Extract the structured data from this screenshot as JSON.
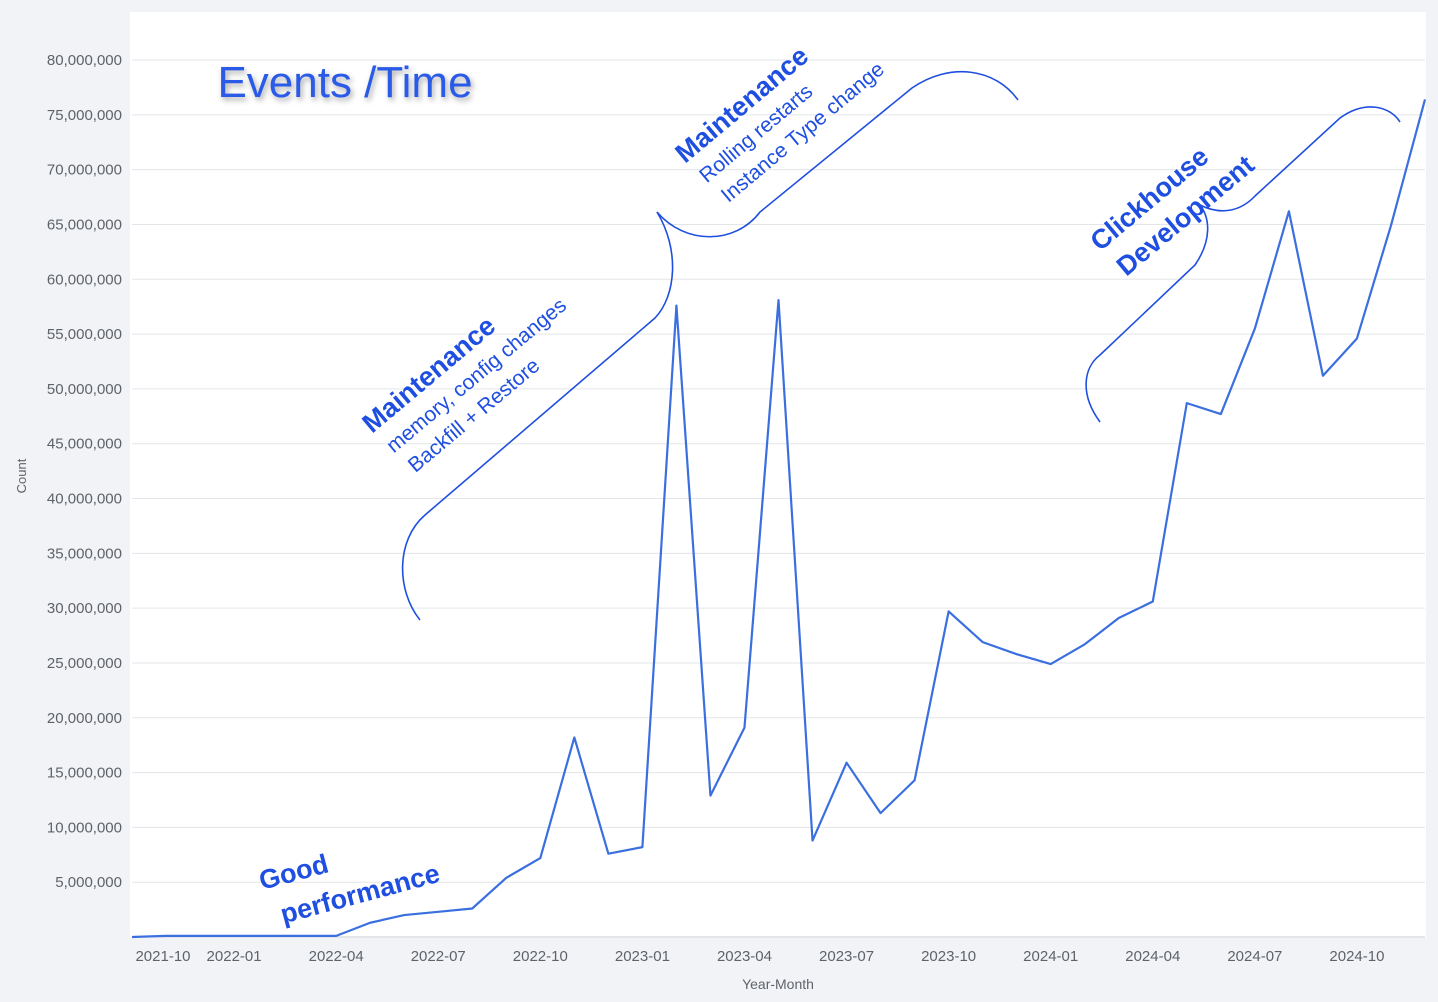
{
  "chart_data": {
    "type": "line",
    "title": "Events /Time",
    "x_label": "Year-Month",
    "y_label": "Count",
    "categories": [
      "2021-10",
      null,
      null,
      "2022-01",
      null,
      null,
      "2022-04",
      null,
      null,
      "2022-07",
      null,
      null,
      "2022-10",
      null,
      null,
      "2023-01",
      null,
      null,
      "2023-04",
      null,
      null,
      "2023-07",
      null,
      null,
      "2023-10",
      null,
      null,
      "2024-01",
      null,
      null,
      "2024-04",
      null,
      null,
      "2024-07",
      null,
      null,
      "2024-10",
      null,
      null
    ],
    "series": [
      {
        "name": "Count",
        "color": "#3b6fe0",
        "values": [
          0,
          100000,
          100000,
          100000,
          100000,
          100000,
          100000,
          1300000,
          2000000,
          2300000,
          2600000,
          5400000,
          7200000,
          18200000,
          7600000,
          8200000,
          57600000,
          12900000,
          19100000,
          58100000,
          8800000,
          15900000,
          11300000,
          14300000,
          29700000,
          26900000,
          25800000,
          24900000,
          26700000,
          29100000,
          30600000,
          48700000,
          47700000,
          55500000,
          66200000,
          51200000,
          54600000,
          64900000,
          76400000
        ]
      }
    ],
    "ylim": [
      0,
      80000000
    ],
    "yticks": [
      {
        "value": 5000000,
        "label": "5,000,000"
      },
      {
        "value": 10000000,
        "label": "10,000,000"
      },
      {
        "value": 15000000,
        "label": "15,000,000"
      },
      {
        "value": 20000000,
        "label": "20,000,000"
      },
      {
        "value": 25000000,
        "label": "25,000,000"
      },
      {
        "value": 30000000,
        "label": "30,000,000"
      },
      {
        "value": 35000000,
        "label": "35,000,000"
      },
      {
        "value": 40000000,
        "label": "40,000,000"
      },
      {
        "value": 45000000,
        "label": "45,000,000"
      },
      {
        "value": 50000000,
        "label": "50,000,000"
      },
      {
        "value": 55000000,
        "label": "55,000,000"
      },
      {
        "value": 60000000,
        "label": "60,000,000"
      },
      {
        "value": 65000000,
        "label": "65,000,000"
      },
      {
        "value": 70000000,
        "label": "70,000,000"
      },
      {
        "value": 75000000,
        "label": "75,000,000"
      },
      {
        "value": 80000000,
        "label": "80,000,000"
      }
    ],
    "grid": true,
    "annotations": [
      {
        "lines": [
          "Good",
          "performance"
        ]
      },
      {
        "lines": [
          "Maintenance",
          "memory, config changes",
          "Backfill +  Restore"
        ]
      },
      {
        "lines": [
          "Maintenance",
          "Rolling restarts",
          "Instance Type change"
        ]
      },
      {
        "lines": [
          "Clickhouse",
          "Development"
        ]
      }
    ]
  }
}
